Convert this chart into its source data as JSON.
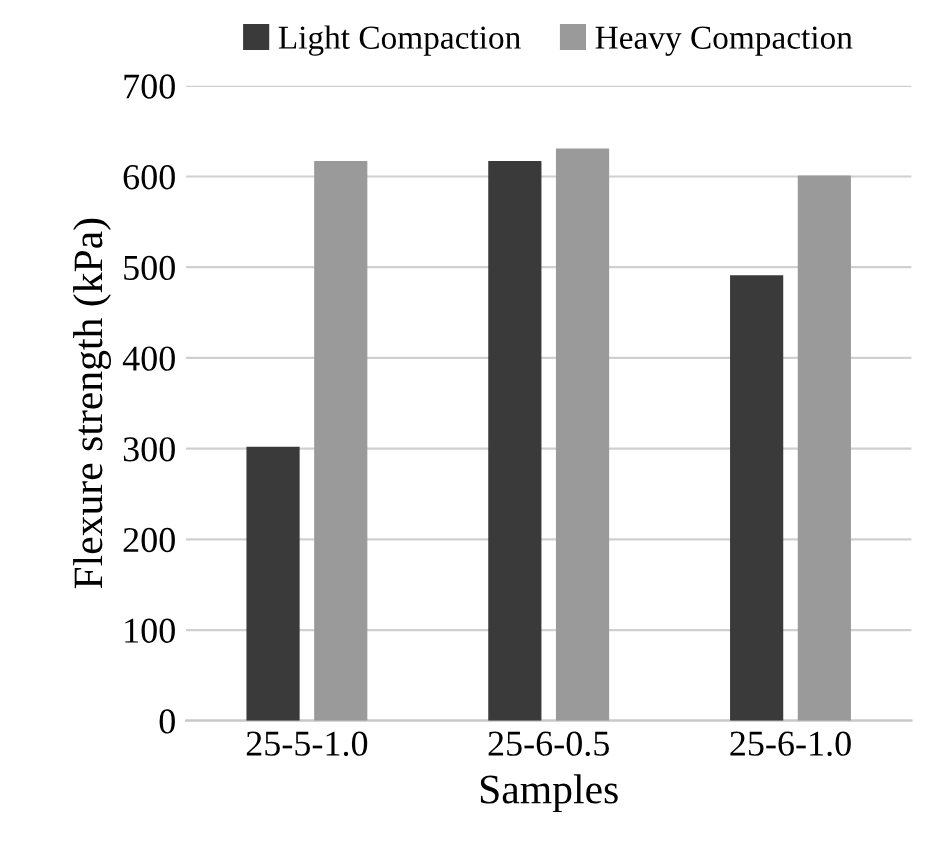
{
  "chart_data": {
    "type": "bar",
    "xlabel": "Samples",
    "ylabel": "Flexure strength (kPa)",
    "categories": [
      "25-5-1.0",
      "25-6-0.5",
      "25-6-1.0"
    ],
    "series": [
      {
        "name": "Light Compaction",
        "color": "#3a3a3a",
        "values": [
          302,
          617,
          491
        ]
      },
      {
        "name": "Heavy Compaction",
        "color": "#9a9a9a",
        "values": [
          617,
          631,
          601
        ]
      }
    ],
    "ylim": [
      0,
      700
    ],
    "yticks": [
      0,
      100,
      200,
      300,
      400,
      500,
      600,
      700
    ],
    "grid": "y",
    "legend": "top"
  }
}
